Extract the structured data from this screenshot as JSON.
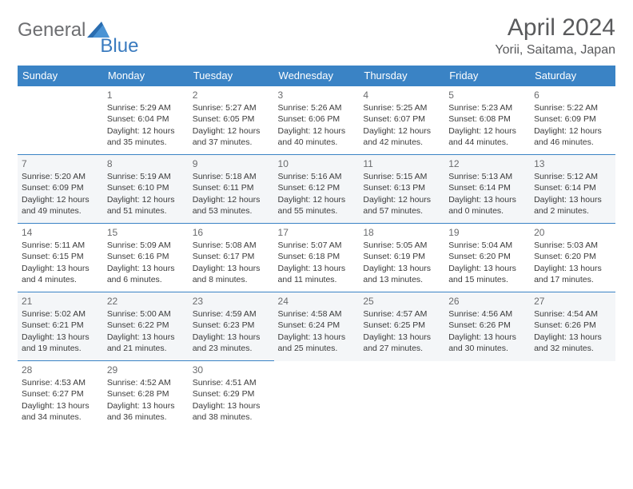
{
  "brand": {
    "word1": "General",
    "word2": "Blue",
    "icon_color": "#2a6db0",
    "text_color": "#6d6e71"
  },
  "header": {
    "title": "April 2024",
    "location": "Yorii, Saitama, Japan",
    "title_color": "#595a5c",
    "title_fontsize": 30,
    "location_fontsize": 16
  },
  "calendar": {
    "header_bg": "#3a83c5",
    "header_fg": "#ffffff",
    "row_border": "#3a83c5",
    "days": [
      "Sunday",
      "Monday",
      "Tuesday",
      "Wednesday",
      "Thursday",
      "Friday",
      "Saturday"
    ],
    "cell_fontsize": 10.5,
    "daynum_color": "#6a6b6d",
    "weeks": [
      [
        null,
        {
          "n": "1",
          "sr": "5:29 AM",
          "ss": "6:04 PM",
          "dl": "12 hours and 35 minutes."
        },
        {
          "n": "2",
          "sr": "5:27 AM",
          "ss": "6:05 PM",
          "dl": "12 hours and 37 minutes."
        },
        {
          "n": "3",
          "sr": "5:26 AM",
          "ss": "6:06 PM",
          "dl": "12 hours and 40 minutes."
        },
        {
          "n": "4",
          "sr": "5:25 AM",
          "ss": "6:07 PM",
          "dl": "12 hours and 42 minutes."
        },
        {
          "n": "5",
          "sr": "5:23 AM",
          "ss": "6:08 PM",
          "dl": "12 hours and 44 minutes."
        },
        {
          "n": "6",
          "sr": "5:22 AM",
          "ss": "6:09 PM",
          "dl": "12 hours and 46 minutes."
        }
      ],
      [
        {
          "n": "7",
          "sr": "5:20 AM",
          "ss": "6:09 PM",
          "dl": "12 hours and 49 minutes."
        },
        {
          "n": "8",
          "sr": "5:19 AM",
          "ss": "6:10 PM",
          "dl": "12 hours and 51 minutes."
        },
        {
          "n": "9",
          "sr": "5:18 AM",
          "ss": "6:11 PM",
          "dl": "12 hours and 53 minutes."
        },
        {
          "n": "10",
          "sr": "5:16 AM",
          "ss": "6:12 PM",
          "dl": "12 hours and 55 minutes."
        },
        {
          "n": "11",
          "sr": "5:15 AM",
          "ss": "6:13 PM",
          "dl": "12 hours and 57 minutes."
        },
        {
          "n": "12",
          "sr": "5:13 AM",
          "ss": "6:14 PM",
          "dl": "13 hours and 0 minutes."
        },
        {
          "n": "13",
          "sr": "5:12 AM",
          "ss": "6:14 PM",
          "dl": "13 hours and 2 minutes."
        }
      ],
      [
        {
          "n": "14",
          "sr": "5:11 AM",
          "ss": "6:15 PM",
          "dl": "13 hours and 4 minutes."
        },
        {
          "n": "15",
          "sr": "5:09 AM",
          "ss": "6:16 PM",
          "dl": "13 hours and 6 minutes."
        },
        {
          "n": "16",
          "sr": "5:08 AM",
          "ss": "6:17 PM",
          "dl": "13 hours and 8 minutes."
        },
        {
          "n": "17",
          "sr": "5:07 AM",
          "ss": "6:18 PM",
          "dl": "13 hours and 11 minutes."
        },
        {
          "n": "18",
          "sr": "5:05 AM",
          "ss": "6:19 PM",
          "dl": "13 hours and 13 minutes."
        },
        {
          "n": "19",
          "sr": "5:04 AM",
          "ss": "6:20 PM",
          "dl": "13 hours and 15 minutes."
        },
        {
          "n": "20",
          "sr": "5:03 AM",
          "ss": "6:20 PM",
          "dl": "13 hours and 17 minutes."
        }
      ],
      [
        {
          "n": "21",
          "sr": "5:02 AM",
          "ss": "6:21 PM",
          "dl": "13 hours and 19 minutes."
        },
        {
          "n": "22",
          "sr": "5:00 AM",
          "ss": "6:22 PM",
          "dl": "13 hours and 21 minutes."
        },
        {
          "n": "23",
          "sr": "4:59 AM",
          "ss": "6:23 PM",
          "dl": "13 hours and 23 minutes."
        },
        {
          "n": "24",
          "sr": "4:58 AM",
          "ss": "6:24 PM",
          "dl": "13 hours and 25 minutes."
        },
        {
          "n": "25",
          "sr": "4:57 AM",
          "ss": "6:25 PM",
          "dl": "13 hours and 27 minutes."
        },
        {
          "n": "26",
          "sr": "4:56 AM",
          "ss": "6:26 PM",
          "dl": "13 hours and 30 minutes."
        },
        {
          "n": "27",
          "sr": "4:54 AM",
          "ss": "6:26 PM",
          "dl": "13 hours and 32 minutes."
        }
      ],
      [
        {
          "n": "28",
          "sr": "4:53 AM",
          "ss": "6:27 PM",
          "dl": "13 hours and 34 minutes."
        },
        {
          "n": "29",
          "sr": "4:52 AM",
          "ss": "6:28 PM",
          "dl": "13 hours and 36 minutes."
        },
        {
          "n": "30",
          "sr": "4:51 AM",
          "ss": "6:29 PM",
          "dl": "13 hours and 38 minutes."
        },
        null,
        null,
        null,
        null
      ]
    ],
    "labels": {
      "sunrise": "Sunrise:",
      "sunset": "Sunset:",
      "daylight": "Daylight:"
    }
  }
}
